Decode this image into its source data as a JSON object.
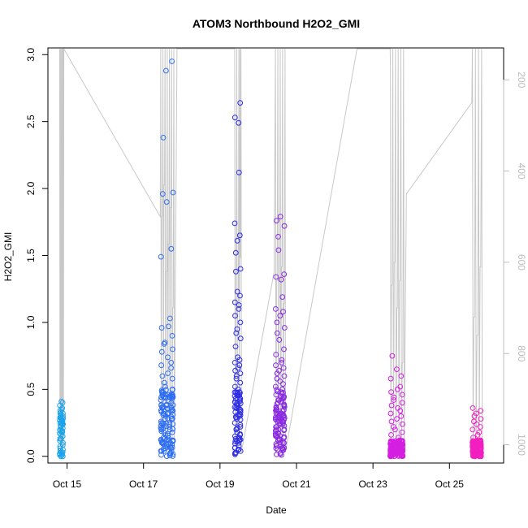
{
  "chart_data": {
    "type": "scatter",
    "title": "ATOM3 Northbound H2O2_GMI",
    "xlabel": "Date",
    "ylabel": "H2O2_GMI",
    "x_axis": {
      "start_date": "2017-10-14",
      "range": [
        "2017-10-14T12:00",
        "2017-10-26T10:00"
      ],
      "ticks": [
        {
          "date": "2017-10-15",
          "label": "Oct 15"
        },
        {
          "date": "2017-10-17",
          "label": "Oct 17"
        },
        {
          "date": "2017-10-19",
          "label": "Oct 19"
        },
        {
          "date": "2017-10-21",
          "label": "Oct 21"
        },
        {
          "date": "2017-10-23",
          "label": "Oct 23"
        },
        {
          "date": "2017-10-25",
          "label": "Oct 25"
        }
      ]
    },
    "y_axis": {
      "range": [
        -0.05,
        3.05
      ],
      "ticks": [
        0.0,
        0.5,
        1.0,
        1.5,
        2.0,
        2.5,
        3.0
      ],
      "tick_labels": [
        "0.0",
        "0.5",
        "1.0",
        "1.5",
        "2.0",
        "2.5",
        "3.0"
      ]
    },
    "y2_axis": {
      "range": [
        1040,
        130
      ],
      "ticks": [
        200,
        400,
        600,
        800,
        1000
      ],
      "tick_labels": [
        "200",
        "400",
        "600",
        "800",
        "1000"
      ],
      "color": "#bdbdbd"
    },
    "grid": false,
    "legend": "none",
    "flights": [
      {
        "date": "2017-10-14",
        "color": "#1aa3ea",
        "hours": [
          19.4,
          21.6
        ],
        "spread": "low",
        "n": 60,
        "values": [
          0.41,
          0.4,
          0.38,
          0.36,
          0.35,
          0.34,
          0.32,
          0.31,
          0.3,
          0.3,
          0.29,
          0.28,
          0.27,
          0.27,
          0.26,
          0.25,
          0.25,
          0.24,
          0.23,
          0.22,
          0.21,
          0.2,
          0.19,
          0.18,
          0.17,
          0.15,
          0.13,
          0.06,
          0.05,
          0.04,
          0.03,
          0.03,
          0.02,
          0.02,
          0.01,
          0.01,
          0.0
        ]
      },
      {
        "date": "2017-10-17",
        "color": "#2e6ef3",
        "hours": [
          10.8,
          19.0
        ],
        "spread": "mid",
        "n": 150,
        "values": [
          2.95,
          2.88,
          2.38,
          1.97,
          1.96,
          1.9,
          1.55,
          1.49,
          1.03,
          0.97,
          0.96,
          0.9,
          0.85,
          0.84,
          0.8,
          0.78,
          0.74,
          0.7,
          0.68,
          0.66,
          0.62,
          0.6,
          0.58,
          0.55,
          0.52,
          0.5,
          0.48,
          0.46,
          0.44,
          0.42,
          0.4,
          0.38,
          0.36,
          0.34,
          0.32,
          0.3,
          0.28,
          0.26,
          0.24,
          0.22,
          0.2,
          0.18,
          0.16,
          0.14,
          0.12,
          0.1,
          0.08,
          0.06,
          0.04,
          0.02
        ]
      },
      {
        "date": "2017-10-19",
        "color": "#2d2ce6",
        "hours": [
          9.2,
          13.2
        ],
        "spread": "mid",
        "n": 100,
        "values": [
          2.64,
          2.53,
          2.49,
          2.12,
          1.74,
          1.65,
          1.61,
          1.52,
          1.4,
          1.38,
          1.23,
          1.2,
          1.15,
          1.13,
          1.1,
          1.05,
          1.0,
          0.95,
          0.92,
          0.88,
          0.82,
          0.74,
          0.72,
          0.7,
          0.68,
          0.66,
          0.64,
          0.62,
          0.6,
          0.58,
          0.55,
          0.52,
          0.5,
          0.48,
          0.45,
          0.42,
          0.38,
          0.33,
          0.22,
          0.2,
          0.18,
          0.16,
          0.15,
          0.14,
          0.12
        ]
      },
      {
        "date": "2017-10-20",
        "color": "#8a2be2",
        "hours": [
          10.8,
          16.8
        ],
        "spread": "mid",
        "n": 130,
        "values": [
          1.79,
          1.76,
          1.72,
          1.64,
          1.54,
          1.36,
          1.34,
          1.32,
          1.19,
          1.1,
          1.08,
          1.05,
          1.0,
          0.96,
          0.92,
          0.87,
          0.8,
          0.76,
          0.72,
          0.7,
          0.68,
          0.66,
          0.64,
          0.62,
          0.6,
          0.58,
          0.56,
          0.54,
          0.52,
          0.5,
          0.48,
          0.46,
          0.44,
          0.42,
          0.4,
          0.38,
          0.35,
          0.32,
          0.3,
          0.28,
          0.26,
          0.24,
          0.22,
          0.2,
          0.17,
          0.13,
          0.1,
          0.06,
          0.01
        ]
      },
      {
        "date": "2017-10-23",
        "color": "#d41fe0",
        "hours": [
          10.8,
          19.2
        ],
        "spread": "high",
        "n": 160,
        "values": [
          0.75,
          0.65,
          0.6,
          0.58,
          0.52,
          0.5,
          0.48,
          0.46,
          0.44,
          0.42,
          0.4,
          0.38,
          0.36,
          0.34,
          0.32,
          0.3,
          0.28,
          0.26,
          0.24,
          0.22,
          0.2,
          0.18,
          0.16,
          0.14,
          0.12,
          0.1,
          0.08,
          0.06,
          0.05,
          0.04,
          0.03,
          0.02,
          0.01,
          0.0
        ]
      },
      {
        "date": "2017-10-25",
        "color": "#f31fbf",
        "hours": [
          14.4,
          20.2
        ],
        "spread": "high",
        "n": 140,
        "values": [
          0.36,
          0.34,
          0.32,
          0.3,
          0.28,
          0.26,
          0.24,
          0.22,
          0.2,
          0.18,
          0.16,
          0.14,
          0.12,
          0.1,
          0.09,
          0.08,
          0.07,
          0.06,
          0.05,
          0.04,
          0.03,
          0.02,
          0.01,
          0.0
        ]
      }
    ],
    "pressure_series": {
      "axis": "y2",
      "color": "#c8c8c8",
      "description_unit": "pressure on right axis (200-1000)",
      "transit_points": [
        {
          "date": "2017-10-14T22:00",
          "value": 132
        },
        {
          "date": "2017-10-17T10:30",
          "value": 500
        },
        {
          "date": "2017-10-17T21:00",
          "value": 132
        },
        {
          "date": "2017-10-19T11:00",
          "value": 738
        },
        {
          "date": "2017-10-19T12:30",
          "value": 132
        },
        {
          "date": "2017-10-20T10:00",
          "value": 620
        },
        {
          "date": "2017-10-22T14:00",
          "value": 132
        },
        {
          "date": "2017-10-23T11:00",
          "value": 180
        },
        {
          "date": "2017-10-23T21:00",
          "value": 450
        },
        {
          "date": "2017-10-25T14:00",
          "value": 250
        }
      ]
    }
  }
}
